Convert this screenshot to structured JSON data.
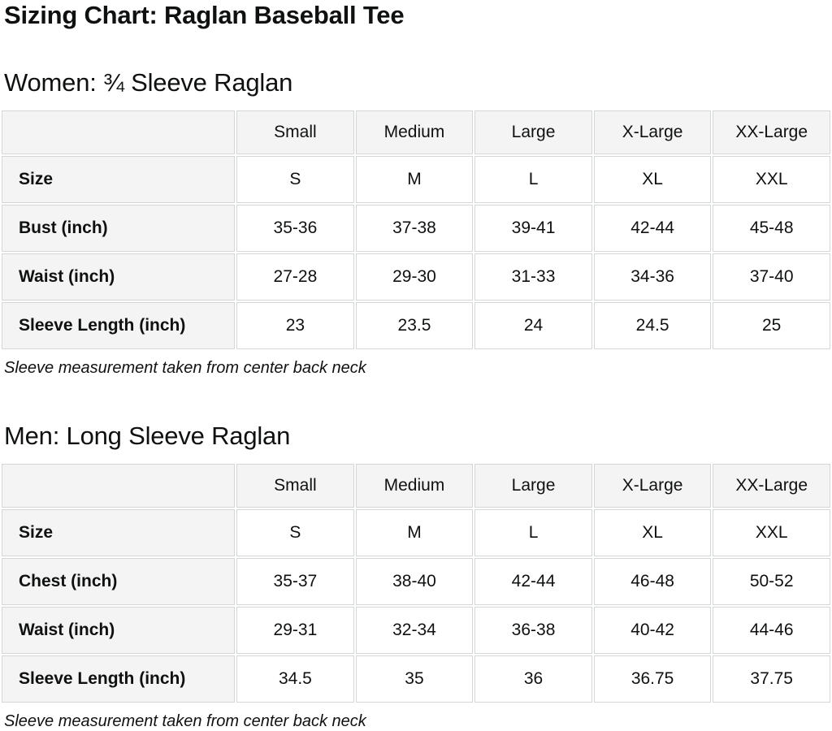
{
  "page": {
    "title": "Sizing Chart: Raglan Baseball Tee"
  },
  "colors": {
    "page_bg": "#ffffff",
    "text": "#0f1111",
    "header_cell_bg": "#f4f4f4",
    "label_cell_bg": "#f4f4f4",
    "data_cell_bg": "#ffffff",
    "cell_border": "#d3d7d7"
  },
  "sections": [
    {
      "heading": "Women: ¾ Sleeve Raglan",
      "note": "Sleeve measurement taken from center back neck",
      "table": {
        "columns": [
          "",
          "Small",
          "Medium",
          "Large",
          "X-Large",
          "XX-Large"
        ],
        "rows": [
          {
            "label": "Size",
            "values": [
              "S",
              "M",
              "L",
              "XL",
              "XXL"
            ]
          },
          {
            "label": "Bust (inch)",
            "values": [
              "35-36",
              "37-38",
              "39-41",
              "42-44",
              "45-48"
            ]
          },
          {
            "label": "Waist (inch)",
            "values": [
              "27-28",
              "29-30",
              "31-33",
              "34-36",
              "37-40"
            ]
          },
          {
            "label": "Sleeve Length (inch)",
            "values": [
              "23",
              "23.5",
              "24",
              "24.5",
              "25"
            ]
          }
        ]
      }
    },
    {
      "heading": "Men: Long Sleeve Raglan",
      "note": "Sleeve measurement taken from center back neck",
      "table": {
        "columns": [
          "",
          "Small",
          "Medium",
          "Large",
          "X-Large",
          "XX-Large"
        ],
        "rows": [
          {
            "label": "Size",
            "values": [
              "S",
              "M",
              "L",
              "XL",
              "XXL"
            ]
          },
          {
            "label": "Chest (inch)",
            "values": [
              "35-37",
              "38-40",
              "42-44",
              "46-48",
              "50-52"
            ]
          },
          {
            "label": "Waist (inch)",
            "values": [
              "29-31",
              "32-34",
              "36-38",
              "40-42",
              "44-46"
            ]
          },
          {
            "label": "Sleeve Length (inch)",
            "values": [
              "34.5",
              "35",
              "36",
              "36.75",
              "37.75"
            ]
          }
        ]
      }
    }
  ]
}
